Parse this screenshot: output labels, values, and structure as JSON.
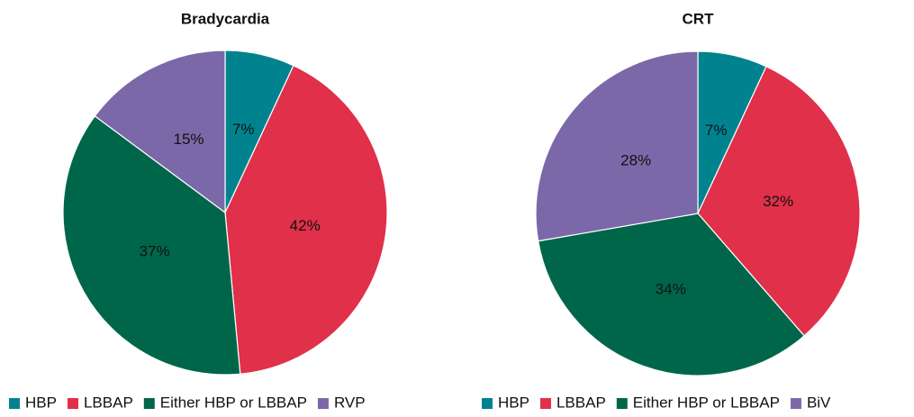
{
  "chart_data": [
    {
      "type": "pie",
      "title": "Bradycardia",
      "categories": [
        "HBP",
        "LBBAP",
        "Either HBP or LBBAP",
        "RVP"
      ],
      "values": [
        7,
        42,
        37,
        15
      ],
      "value_labels": [
        "7%",
        "42%",
        "37%",
        "15%"
      ],
      "colors": [
        "#00838f",
        "#e0304a",
        "#00664a",
        "#7b68a8"
      ],
      "legend": "bottom"
    },
    {
      "type": "pie",
      "title": "CRT",
      "categories": [
        "HBP",
        "LBBAP",
        "Either HBP or LBBAP",
        "BiV"
      ],
      "values": [
        7,
        32,
        34,
        28
      ],
      "value_labels": [
        "7%",
        "32%",
        "34%",
        "28%"
      ],
      "colors": [
        "#00838f",
        "#e0304a",
        "#00664a",
        "#7b68a8"
      ],
      "legend": "bottom"
    }
  ]
}
